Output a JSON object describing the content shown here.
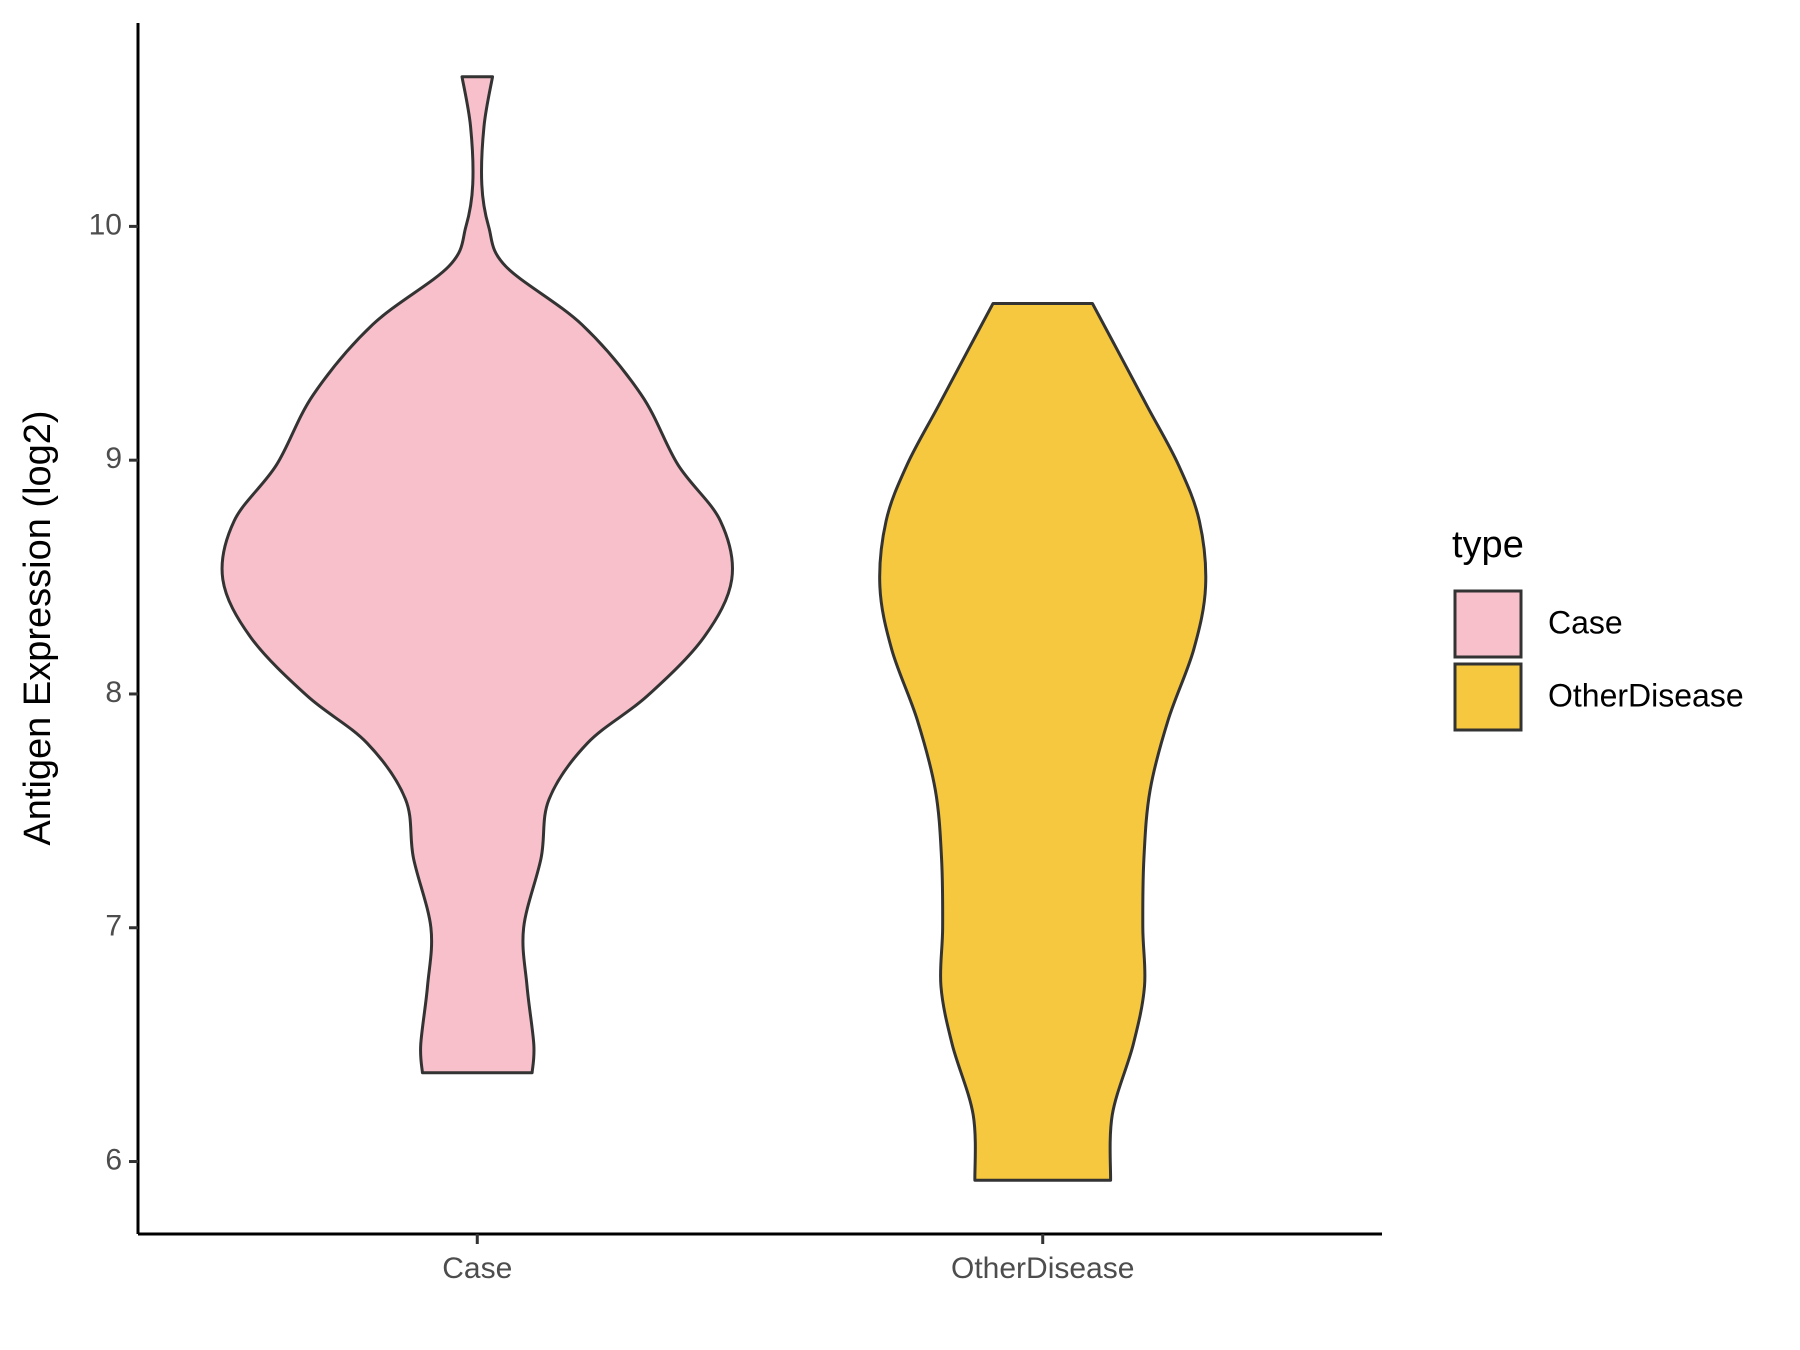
{
  "chart_data": {
    "type": "violin",
    "ylabel": "Antigen Expression (log2)",
    "categories": [
      "Case",
      "OtherDisease"
    ],
    "xlim": [
      0.4,
      2.6
    ],
    "ylim": [
      5.69,
      10.87
    ],
    "yticks": [
      6,
      7,
      8,
      9,
      10
    ],
    "legend_title": "type",
    "legend_position": "right",
    "series": [
      {
        "name": "Case",
        "color": "#f7c0cb",
        "y": [
          10.64,
          10.43,
          10.18,
          10.0,
          9.83,
          9.58,
          9.28,
          8.98,
          8.74,
          8.49,
          8.24,
          7.99,
          7.79,
          7.55,
          7.3,
          7.0,
          6.75,
          6.5,
          6.38
        ],
        "width": [
          0.027,
          0.012,
          0.008,
          0.02,
          0.05,
          0.185,
          0.29,
          0.355,
          0.43,
          0.45,
          0.4,
          0.3,
          0.195,
          0.127,
          0.113,
          0.082,
          0.088,
          0.1,
          0.097
        ]
      },
      {
        "name": "OtherDisease",
        "color": "#f5c840",
        "y": [
          9.67,
          9.48,
          9.23,
          8.98,
          8.74,
          8.46,
          8.19,
          7.89,
          7.59,
          7.3,
          7.0,
          6.75,
          6.5,
          6.2,
          5.92
        ],
        "width": [
          0.088,
          0.13,
          0.185,
          0.24,
          0.277,
          0.288,
          0.267,
          0.222,
          0.19,
          0.179,
          0.177,
          0.18,
          0.16,
          0.123,
          0.12
        ]
      }
    ]
  }
}
